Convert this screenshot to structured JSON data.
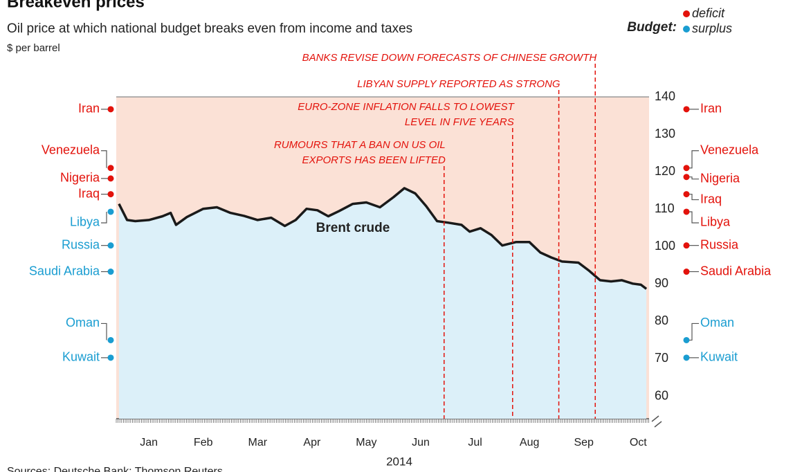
{
  "chart_data": {
    "type": "line",
    "title": "Breakeven prices",
    "subtitle": "Oil price at which national budget breaks even from income and taxes",
    "y_unit": "$ per barrel",
    "x_label": "2014",
    "source": "Sources: Deutsche Bank; Thomson Reuters",
    "legend": {
      "title": "Budget:",
      "items": [
        {
          "name": "deficit",
          "color": "#e3120b"
        },
        {
          "name": "surplus",
          "color": "#1a9dd1"
        }
      ]
    },
    "xlim": [
      -0.1,
      9.7
    ],
    "xticks": [
      {
        "value": 0.5,
        "label": "Jan"
      },
      {
        "value": 1.5,
        "label": "Feb"
      },
      {
        "value": 2.5,
        "label": "Mar"
      },
      {
        "value": 3.5,
        "label": "Apr"
      },
      {
        "value": 4.5,
        "label": "May"
      },
      {
        "value": 5.5,
        "label": "Jun"
      },
      {
        "value": 6.5,
        "label": "Jul"
      },
      {
        "value": 7.5,
        "label": "Aug"
      },
      {
        "value": 8.5,
        "label": "Sep"
      },
      {
        "value": 9.5,
        "label": "Oct"
      }
    ],
    "ylim": [
      54,
      140
    ],
    "yticks": [
      60,
      70,
      80,
      90,
      100,
      110,
      120,
      130,
      140
    ],
    "series": [
      {
        "name": "Brent crude",
        "color": "#1a1a1a",
        "x": [
          -0.05,
          0.1,
          0.25,
          0.5,
          0.75,
          0.9,
          1.0,
          1.2,
          1.5,
          1.75,
          2.0,
          2.25,
          2.5,
          2.75,
          3.0,
          3.2,
          3.4,
          3.6,
          3.8,
          4.0,
          4.25,
          4.5,
          4.75,
          5.0,
          5.2,
          5.4,
          5.6,
          5.8,
          6.0,
          6.25,
          6.4,
          6.6,
          6.8,
          7.0,
          7.25,
          7.5,
          7.7,
          7.9,
          8.1,
          8.4,
          8.6,
          8.8,
          9.0,
          9.2,
          9.4,
          9.55,
          9.65
        ],
        "values": [
          111.4,
          107.1,
          106.8,
          107.1,
          108.1,
          109,
          105.8,
          107.9,
          110.1,
          110.5,
          109,
          108.2,
          107.1,
          107.7,
          105.5,
          107.1,
          110.1,
          109.7,
          108.1,
          109.5,
          111.4,
          111.8,
          110.5,
          113.2,
          115.6,
          114.2,
          110.8,
          106.8,
          106.4,
          105.8,
          104,
          104.9,
          103.1,
          100.3,
          101.2,
          101.2,
          98.4,
          97.1,
          96,
          95.7,
          93.5,
          91,
          90.7,
          91,
          90.1,
          89.8,
          88.7
        ]
      }
    ],
    "countries": {
      "names": [
        "Iran",
        "Venezuela",
        "Nigeria",
        "Iraq",
        "Libya",
        "Russia",
        "Saudi Arabia",
        "Oman",
        "Kuwait"
      ],
      "start_values": [
        136.7,
        121,
        118.2,
        114,
        109.3,
        100.3,
        93.3,
        75,
        70.3
      ],
      "start_colors": [
        "#e3120b",
        "#e3120b",
        "#e3120b",
        "#e3120b",
        "#1a9dd1",
        "#1a9dd1",
        "#1a9dd1",
        "#1a9dd1",
        "#1a9dd1"
      ],
      "end_values": [
        136.7,
        121,
        118.6,
        114,
        109.3,
        100.3,
        93.3,
        75,
        70.3
      ],
      "end_colors": [
        "#e3120b",
        "#e3120b",
        "#e3120b",
        "#e3120b",
        "#e3120b",
        "#e3120b",
        "#e3120b",
        "#1a9dd1",
        "#1a9dd1"
      ]
    },
    "events": [
      {
        "x": 5.93,
        "text": [
          "RUMOURS THAT A BAN ON US OIL",
          "EXPORTS HAS BEEN LIFTED"
        ]
      },
      {
        "x": 7.19,
        "text": [
          "EURO-ZONE INFLATION FALLS TO LOWEST",
          "LEVEL IN FIVE YEARS"
        ]
      },
      {
        "x": 8.04,
        "text": [
          "LIBYAN SUPPLY REPORTED AS STRONG"
        ]
      },
      {
        "x": 8.71,
        "text": [
          "BANKS REVISE DOWN FORECASTS OF CHINESE GROWTH"
        ]
      }
    ]
  }
}
